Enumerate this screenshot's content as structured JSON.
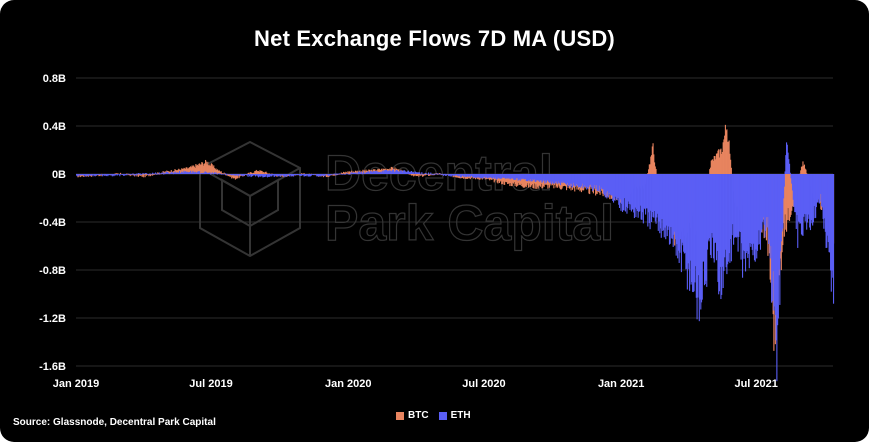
{
  "title": "Net Exchange Flows 7D MA (USD)",
  "source": "Source: Glassnode, Decentral Park Capital",
  "watermark": {
    "line1": "Decentral",
    "line2": "Park Capital",
    "icon": "cube-logo-icon"
  },
  "colors": {
    "btc": "#e8845f",
    "eth": "#5a5ef5",
    "background": "#000000",
    "grid": "#3a3a3a"
  },
  "chart_data": {
    "type": "bar",
    "title": "Net Exchange Flows 7D MA (USD)",
    "x_ticks": [
      "Jan 2019",
      "Jul 2019",
      "Jan 2020",
      "Jul 2020",
      "Jan 2021",
      "Jul 2021"
    ],
    "y_ticks": [
      "0.8B",
      "0.4B",
      "0B",
      "-0.4B",
      "-0.8B",
      "-1.2B",
      "-1.6B"
    ],
    "ylim": [
      -1.6,
      0.8
    ],
    "y_unit": "B USD",
    "x_range": [
      "2019-01-01",
      "2021-10-12"
    ],
    "grid": true,
    "legend": "bottom-center",
    "series": [
      {
        "name": "BTC",
        "points": [
          [
            "2019-01-01",
            -0.02
          ],
          [
            "2019-02-01",
            -0.01
          ],
          [
            "2019-03-01",
            0.0
          ],
          [
            "2019-04-01",
            -0.02
          ],
          [
            "2019-05-01",
            0.02
          ],
          [
            "2019-06-01",
            0.05
          ],
          [
            "2019-06-25",
            0.1
          ],
          [
            "2019-07-10",
            0.03
          ],
          [
            "2019-08-01",
            -0.04
          ],
          [
            "2019-09-01",
            0.03
          ],
          [
            "2019-10-01",
            -0.02
          ],
          [
            "2019-11-01",
            0.0
          ],
          [
            "2019-12-01",
            -0.02
          ],
          [
            "2020-01-01",
            0.02
          ],
          [
            "2020-02-01",
            0.03
          ],
          [
            "2020-03-01",
            0.05
          ],
          [
            "2020-04-01",
            -0.02
          ],
          [
            "2020-05-01",
            0.0
          ],
          [
            "2020-06-01",
            -0.03
          ],
          [
            "2020-07-01",
            -0.04
          ],
          [
            "2020-08-01",
            -0.08
          ],
          [
            "2020-09-01",
            -0.1
          ],
          [
            "2020-10-01",
            -0.1
          ],
          [
            "2020-11-01",
            -0.12
          ],
          [
            "2020-12-01",
            -0.15
          ],
          [
            "2021-01-01",
            -0.2
          ],
          [
            "2021-01-20",
            -0.1
          ],
          [
            "2021-02-01",
            -0.1
          ],
          [
            "2021-02-12",
            0.22
          ],
          [
            "2021-02-20",
            -0.15
          ],
          [
            "2021-03-01",
            -0.3
          ],
          [
            "2021-03-15",
            -0.55
          ],
          [
            "2021-04-01",
            -0.4
          ],
          [
            "2021-04-15",
            -0.45
          ],
          [
            "2021-05-01",
            0.1
          ],
          [
            "2021-05-15",
            0.2
          ],
          [
            "2021-05-22",
            0.41
          ],
          [
            "2021-06-01",
            -0.2
          ],
          [
            "2021-06-15",
            -0.3
          ],
          [
            "2021-07-01",
            -0.3
          ],
          [
            "2021-07-15",
            -0.5
          ],
          [
            "2021-07-25",
            -1.3
          ],
          [
            "2021-08-05",
            -0.5
          ],
          [
            "2021-08-20",
            -0.2
          ],
          [
            "2021-09-01",
            0.1
          ],
          [
            "2021-09-15",
            -0.15
          ],
          [
            "2021-10-01",
            -0.3
          ],
          [
            "2021-10-12",
            -0.6
          ]
        ]
      },
      {
        "name": "ETH",
        "points": [
          [
            "2019-01-01",
            -0.01
          ],
          [
            "2019-03-01",
            -0.01
          ],
          [
            "2019-06-01",
            0.02
          ],
          [
            "2019-09-01",
            -0.02
          ],
          [
            "2019-12-01",
            -0.01
          ],
          [
            "2020-03-01",
            0.03
          ],
          [
            "2020-06-01",
            -0.02
          ],
          [
            "2020-09-01",
            -0.05
          ],
          [
            "2020-12-01",
            -0.12
          ],
          [
            "2021-01-01",
            -0.25
          ],
          [
            "2021-02-01",
            -0.35
          ],
          [
            "2021-03-01",
            -0.45
          ],
          [
            "2021-04-01",
            -0.8
          ],
          [
            "2021-04-15",
            -1.05
          ],
          [
            "2021-05-01",
            -0.6
          ],
          [
            "2021-05-15",
            -0.9
          ],
          [
            "2021-06-01",
            -0.5
          ],
          [
            "2021-06-15",
            -0.75
          ],
          [
            "2021-07-01",
            -0.6
          ],
          [
            "2021-07-15",
            -0.4
          ],
          [
            "2021-07-28",
            -1.4
          ],
          [
            "2021-08-10",
            0.28
          ],
          [
            "2021-08-25",
            -0.5
          ],
          [
            "2021-09-10",
            -0.4
          ],
          [
            "2021-09-25",
            -0.2
          ],
          [
            "2021-10-12",
            -0.97
          ]
        ]
      }
    ]
  }
}
